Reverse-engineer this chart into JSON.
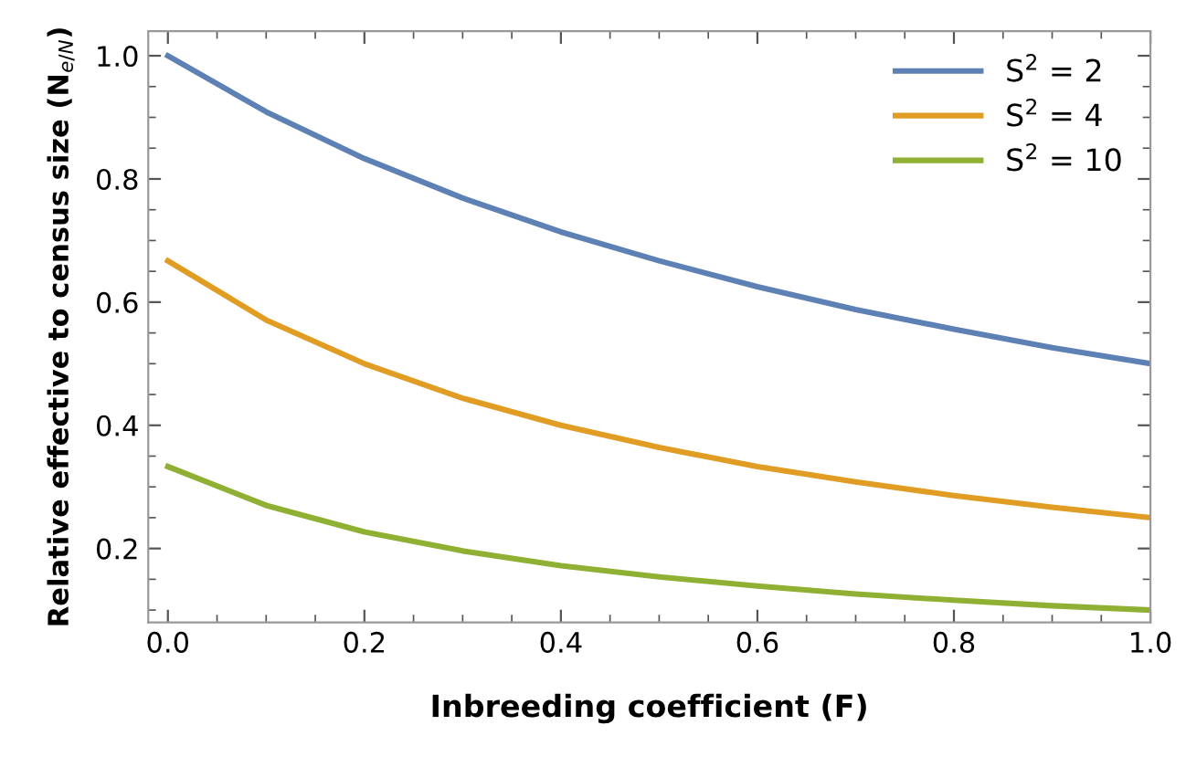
{
  "chart_data": {
    "type": "line",
    "xlabel": "Inbreeding coefficient (F)",
    "ylabel": "Relative effective to census size (N$_{e/N}$)",
    "x": [
      0,
      0.1,
      0.2,
      0.3,
      0.4,
      0.5,
      0.6,
      0.7,
      0.8,
      0.9,
      1.0
    ],
    "series": [
      {
        "name": "S$^{2}$ = 2",
        "color": "#5e81b5",
        "values": [
          1.0,
          0.909,
          0.833,
          0.769,
          0.714,
          0.667,
          0.625,
          0.588,
          0.556,
          0.526,
          0.5
        ]
      },
      {
        "name": "S$^{2}$ = 4",
        "color": "#e19c24",
        "values": [
          0.667,
          0.571,
          0.5,
          0.444,
          0.4,
          0.364,
          0.333,
          0.308,
          0.286,
          0.267,
          0.25
        ]
      },
      {
        "name": "S$^{2}$ = 10",
        "color": "#8fb032",
        "values": [
          0.333,
          0.27,
          0.227,
          0.196,
          0.172,
          0.154,
          0.139,
          0.126,
          0.116,
          0.107,
          0.1
        ]
      }
    ],
    "xlim": [
      -0.02,
      1.0
    ],
    "ylim": [
      0.08,
      1.04
    ],
    "xticks": [
      {
        "value": 0,
        "label": "0.0"
      },
      0.2,
      0.4,
      0.6,
      0.8,
      {
        "value": 1,
        "label": "1.0"
      }
    ],
    "yticks": [
      0.2,
      0.4,
      0.6,
      0.8,
      {
        "value": 1,
        "label": "1.0"
      }
    ],
    "legend": "top right",
    "grid": false,
    "marker": "none",
    "line_style": "solid"
  }
}
